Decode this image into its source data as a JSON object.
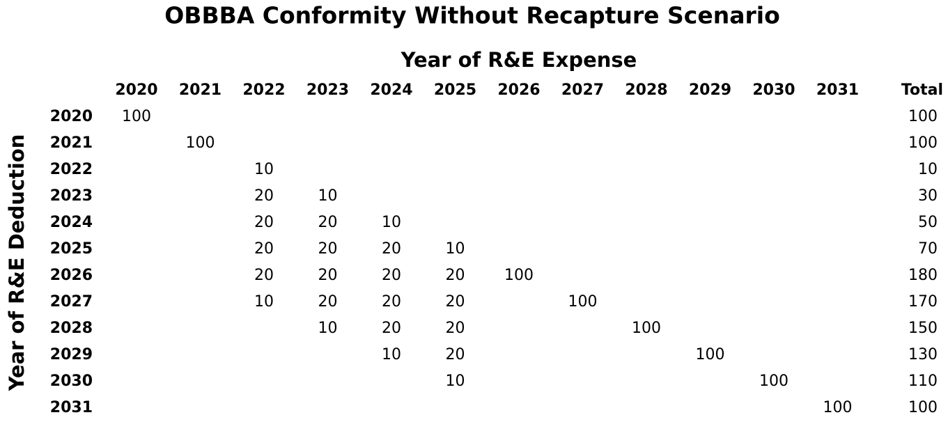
{
  "title": "OBBBA Conformity Without Recapture Scenario",
  "column_axis_label": "Year of R&E Expense",
  "row_axis_label": "Year of R&E Deduction",
  "columns": [
    "2020",
    "2021",
    "2022",
    "2023",
    "2024",
    "2025",
    "2026",
    "2027",
    "2028",
    "2029",
    "2030",
    "2031"
  ],
  "total_header": "Total",
  "rows": [
    {
      "label": "2020",
      "cells": [
        100,
        null,
        null,
        null,
        null,
        null,
        null,
        null,
        null,
        null,
        null,
        null
      ],
      "total": 100
    },
    {
      "label": "2021",
      "cells": [
        null,
        100,
        null,
        null,
        null,
        null,
        null,
        null,
        null,
        null,
        null,
        null
      ],
      "total": 100
    },
    {
      "label": "2022",
      "cells": [
        null,
        null,
        10,
        null,
        null,
        null,
        null,
        null,
        null,
        null,
        null,
        null
      ],
      "total": 10
    },
    {
      "label": "2023",
      "cells": [
        null,
        null,
        20,
        10,
        null,
        null,
        null,
        null,
        null,
        null,
        null,
        null
      ],
      "total": 30
    },
    {
      "label": "2024",
      "cells": [
        null,
        null,
        20,
        20,
        10,
        null,
        null,
        null,
        null,
        null,
        null,
        null
      ],
      "total": 50
    },
    {
      "label": "2025",
      "cells": [
        null,
        null,
        20,
        20,
        20,
        10,
        null,
        null,
        null,
        null,
        null,
        null
      ],
      "total": 70
    },
    {
      "label": "2026",
      "cells": [
        null,
        null,
        20,
        20,
        20,
        20,
        100,
        null,
        null,
        null,
        null,
        null
      ],
      "total": 180
    },
    {
      "label": "2027",
      "cells": [
        null,
        null,
        10,
        20,
        20,
        20,
        null,
        100,
        null,
        null,
        null,
        null
      ],
      "total": 170
    },
    {
      "label": "2028",
      "cells": [
        null,
        null,
        null,
        10,
        20,
        20,
        null,
        null,
        100,
        null,
        null,
        null
      ],
      "total": 150
    },
    {
      "label": "2029",
      "cells": [
        null,
        null,
        null,
        null,
        10,
        20,
        null,
        null,
        null,
        100,
        null,
        null
      ],
      "total": 130
    },
    {
      "label": "2030",
      "cells": [
        null,
        null,
        null,
        null,
        null,
        10,
        null,
        null,
        null,
        null,
        100,
        null
      ],
      "total": 110
    },
    {
      "label": "2031",
      "cells": [
        null,
        null,
        null,
        null,
        null,
        null,
        null,
        null,
        null,
        null,
        null,
        100
      ],
      "total": 100
    }
  ]
}
